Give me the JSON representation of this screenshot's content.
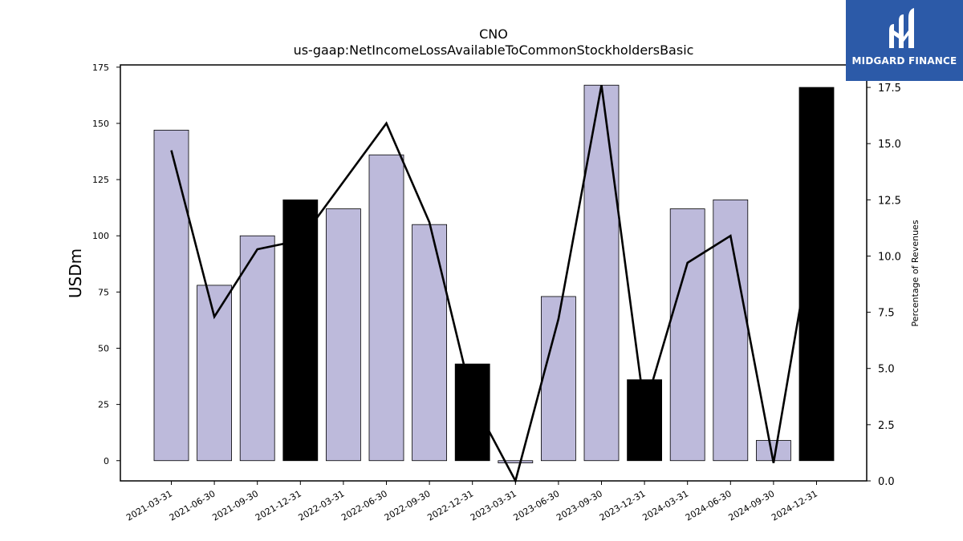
{
  "chart_data": {
    "type": "bar",
    "title": "CNO",
    "subtitle": "us-gaap:NetIncomeLossAvailableToCommonStockholdersBasic",
    "ylabel": "USDm",
    "y2label": "Percentage of Revenues",
    "ylim": [
      -9,
      176
    ],
    "y2lim": [
      0,
      18.5
    ],
    "yticks": [
      0,
      25,
      50,
      75,
      100,
      125,
      150,
      175
    ],
    "y2ticks": [
      "0.0",
      "2.5",
      "5.0",
      "7.5",
      "10.0",
      "12.5",
      "15.0",
      "17.5"
    ],
    "categories": [
      "2021-03-31",
      "2021-06-30",
      "2021-09-30",
      "2021-12-31",
      "2022-03-31",
      "2022-06-30",
      "2022-09-30",
      "2022-12-31",
      "2023-03-31",
      "2023-06-30",
      "2023-09-30",
      "2023-12-31",
      "2024-03-31",
      "2024-06-30",
      "2024-09-30",
      "2024-12-31"
    ],
    "series": [
      {
        "kind": "bar",
        "values": [
          147,
          78,
          100,
          116,
          112,
          136,
          105,
          43,
          -1,
          73,
          167,
          36,
          112,
          116,
          9,
          166
        ],
        "highlight": [
          false,
          false,
          false,
          true,
          false,
          false,
          false,
          true,
          false,
          false,
          false,
          true,
          false,
          false,
          false,
          true
        ],
        "color": "#bdbadb",
        "highlight_color": "#000000"
      },
      {
        "kind": "line",
        "axis": "right",
        "values": [
          14.7,
          7.3,
          10.3,
          10.7,
          null,
          15.9,
          11.5,
          3.6,
          0.0,
          7.2,
          17.6,
          3.2,
          9.7,
          10.9,
          0.8,
          12.0
        ],
        "color": "#000000"
      }
    ]
  },
  "logo": {
    "text": "MIDGARD FINANCE",
    "color": "#2c5aa8"
  }
}
